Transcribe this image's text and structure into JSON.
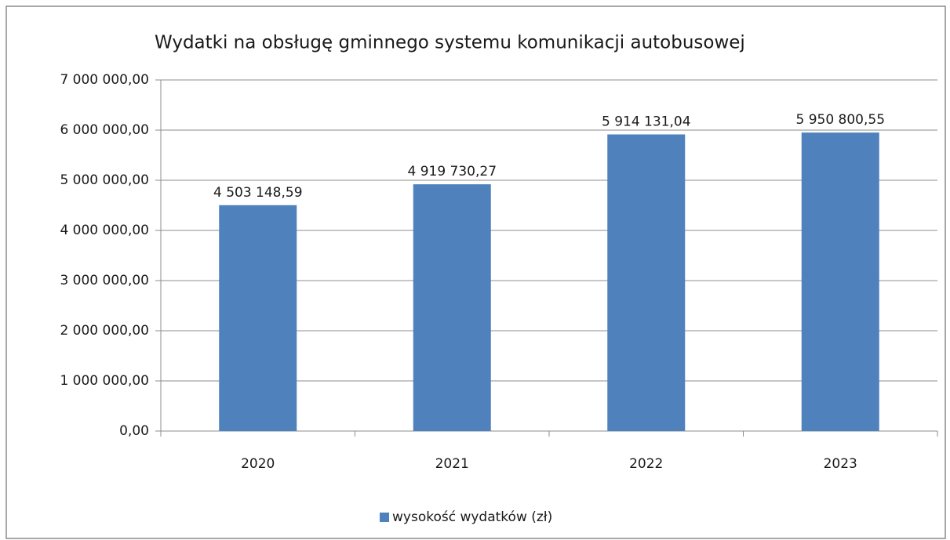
{
  "chart_data": {
    "type": "bar",
    "title": "Wydatki na obsługę gminnego systemu komunikacji autobusowej",
    "categories": [
      "2020",
      "2021",
      "2022",
      "2023"
    ],
    "series": [
      {
        "name": "wysokość wydatków (zł)",
        "color": "#4f81bd",
        "values": [
          4503148.59,
          4919730.27,
          5914131.04,
          5950800.55
        ],
        "value_labels": [
          "4 503 148,59",
          "4 919 730,27",
          "5 914 131,04",
          "5 950 800,55"
        ]
      }
    ],
    "ylim": [
      0,
      7000000
    ],
    "yticks": [
      {
        "value": 0,
        "label": "0,00"
      },
      {
        "value": 1000000,
        "label": "1 000 000,00"
      },
      {
        "value": 2000000,
        "label": "2 000 000,00"
      },
      {
        "value": 3000000,
        "label": "3 000 000,00"
      },
      {
        "value": 4000000,
        "label": "4 000 000,00"
      },
      {
        "value": 5000000,
        "label": "5 000 000,00"
      },
      {
        "value": 6000000,
        "label": "6 000 000,00"
      },
      {
        "value": 7000000,
        "label": "7 000 000,00"
      }
    ],
    "grid": true,
    "legend": "bottom"
  }
}
